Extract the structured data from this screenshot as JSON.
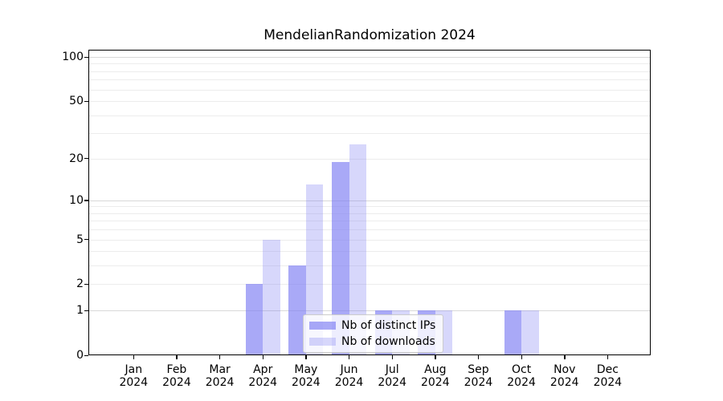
{
  "chart_data": {
    "type": "bar",
    "title": "MendelianRandomization 2024",
    "categories": [
      "Jan",
      "Feb",
      "Mar",
      "Apr",
      "May",
      "Jun",
      "Jul",
      "Aug",
      "Sep",
      "Oct",
      "Nov",
      "Dec"
    ],
    "x_year_label": "2024",
    "series": [
      {
        "name": "Nb of distinct IPs",
        "color": "rgba(124,124,243,0.66)",
        "values": [
          0,
          0,
          0,
          2,
          3,
          19,
          1,
          1,
          0,
          1,
          0,
          0
        ]
      },
      {
        "name": "Nb of downloads",
        "color": "rgba(124,124,243,0.30)",
        "values": [
          0,
          0,
          0,
          5,
          13,
          25,
          1,
          1,
          0,
          1,
          0,
          0
        ]
      }
    ],
    "xlabel": "",
    "ylabel": "",
    "y_scale": "log1p",
    "y_axis_ticks": [
      0,
      1,
      2,
      5,
      10,
      20,
      50,
      100
    ],
    "y_max": 112,
    "gridlines_major": [
      1,
      10,
      100
    ],
    "gridlines_minor": [
      2,
      3,
      4,
      5,
      6,
      7,
      8,
      9,
      20,
      30,
      40,
      50,
      60,
      70,
      80,
      90
    ],
    "grid": true,
    "legend_position": "lower center",
    "colors": {
      "bar_distinct_ips": "rgba(124,124,243,0.66)",
      "bar_downloads": "rgba(124,124,243,0.30)",
      "gridline_major": "#d8d8d8",
      "gridline_minor": "#ececec",
      "axis": "#000000",
      "legend_border": "#cccccc"
    }
  }
}
